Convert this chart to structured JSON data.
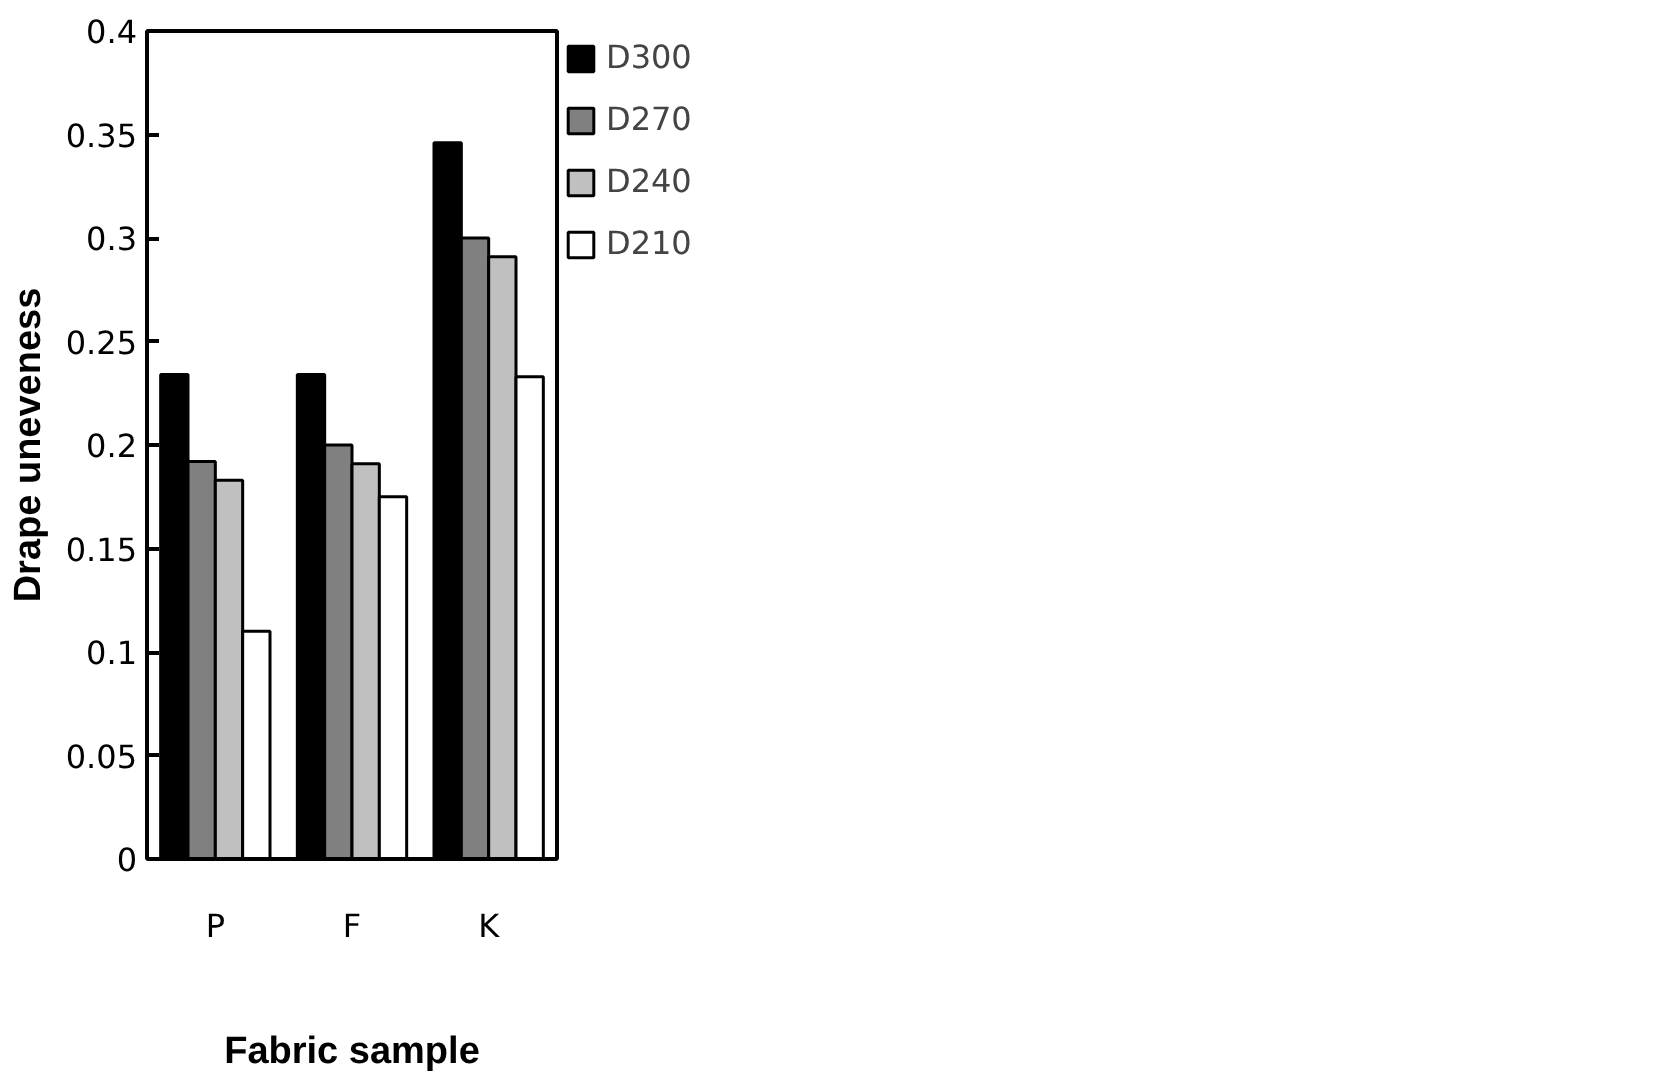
{
  "chart_data": {
    "type": "bar",
    "xlabel": "Fabric sample",
    "ylabel": "Drape uneveness",
    "categories": [
      "P",
      "F",
      "K"
    ],
    "series": [
      {
        "name": "D300",
        "color": "#000000",
        "values": [
          0.234,
          0.234,
          0.346
        ]
      },
      {
        "name": "D270",
        "color": "#808080",
        "values": [
          0.192,
          0.2,
          0.3
        ]
      },
      {
        "name": "D240",
        "color": "#c0c0c0",
        "values": [
          0.183,
          0.191,
          0.291
        ]
      },
      {
        "name": "D210",
        "color": "#ffffff",
        "values": [
          0.11,
          0.175,
          0.233
        ]
      }
    ],
    "ylim": [
      0,
      0.4
    ],
    "yticks": [
      0,
      0.05,
      0.1,
      0.15,
      0.2,
      0.25,
      0.3,
      0.35,
      0.4
    ],
    "grid": false,
    "legend": "right"
  }
}
